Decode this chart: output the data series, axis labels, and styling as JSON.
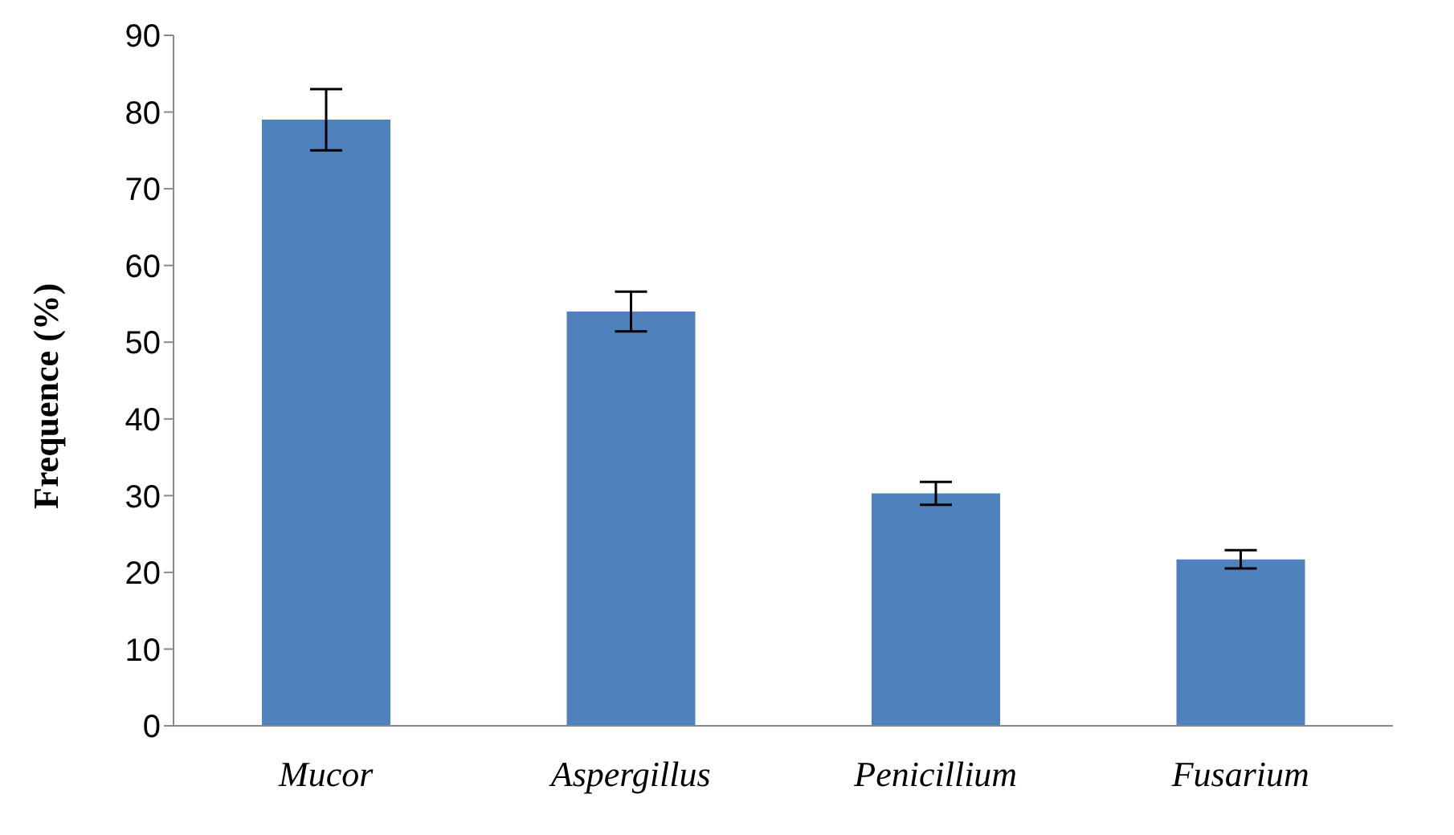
{
  "chart_data": {
    "type": "bar",
    "ylabel": "Frequence (%)",
    "categories": [
      "Mucor",
      "Aspergillus",
      "Penicillium",
      "Fusarium"
    ],
    "values": [
      79,
      54,
      30.3,
      21.7
    ],
    "errors": [
      4,
      2.6,
      1.5,
      1.2
    ],
    "color": "#4f81bd",
    "ylim": [
      0,
      90
    ],
    "yticks": [
      0,
      10,
      20,
      30,
      40,
      50,
      60,
      70,
      80,
      90
    ],
    "grid": false,
    "legend": false
  }
}
